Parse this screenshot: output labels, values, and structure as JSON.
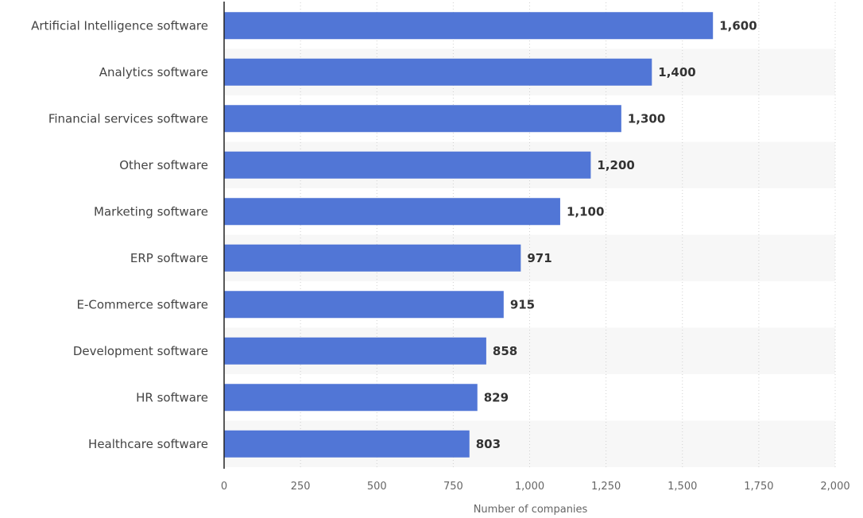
{
  "chart_data": {
    "type": "bar",
    "orientation": "horizontal",
    "categories": [
      "Artificial Intelligence software",
      "Analytics software",
      "Financial services software",
      "Other software",
      "Marketing software",
      "ERP software",
      "E-Commerce software",
      "Development software",
      "HR software",
      "Healthcare software"
    ],
    "values": [
      1600,
      1400,
      1300,
      1200,
      1100,
      971,
      915,
      858,
      829,
      803
    ],
    "value_labels": [
      "1,600",
      "1,400",
      "1,300",
      "1,200",
      "1,100",
      "971",
      "915",
      "858",
      "829",
      "803"
    ],
    "xlabel": "Number of companies",
    "ylabel": "",
    "xlim": [
      0,
      2000
    ],
    "ticks": [
      0,
      250,
      500,
      750,
      1000,
      1250,
      1500,
      1750,
      2000
    ],
    "tick_labels": [
      "0",
      "250",
      "500",
      "750",
      "1,000",
      "1,250",
      "1,500",
      "1,750",
      "2,000"
    ],
    "grid": "vertical dotted",
    "colors": {
      "bar": "#5176d6",
      "band": "#f7f7f7",
      "grid": "#d0d0d0",
      "axis": "#222222"
    }
  }
}
